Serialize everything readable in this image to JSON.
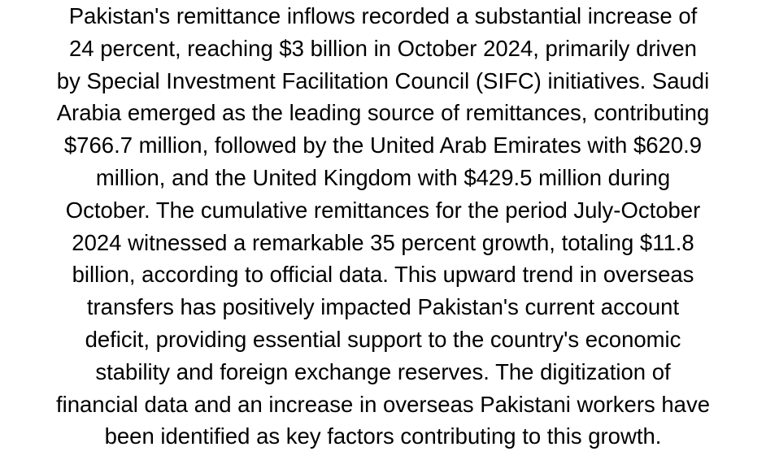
{
  "article": {
    "lines": [
      "Pakistan's remittance inflows recorded a substantial increase of",
      "24 percent, reaching $3 billion in October 2024, primarily driven",
      "by Special Investment Facilitation Council (SIFC) initiatives. Saudi",
      "Arabia emerged as the leading source of remittances, contributing",
      "$766.7 million, followed by the United Arab Emirates with $620.9",
      "million, and the United Kingdom with $429.5 million during",
      "October. The cumulative remittances for the period July-October",
      "2024 witnessed a remarkable 35 percent growth, totaling $11.8",
      "billion, according to official data. This upward trend in overseas",
      "transfers has positively impacted Pakistan's current account",
      "deficit, providing essential support to the country's economic",
      "stability and foreign exchange reserves. The digitization of",
      "financial data and an increase in overseas Pakistani workers have",
      "been identified as key factors contributing to this growth."
    ]
  },
  "colors": {
    "background": "#ffffff",
    "text": "#000000"
  }
}
